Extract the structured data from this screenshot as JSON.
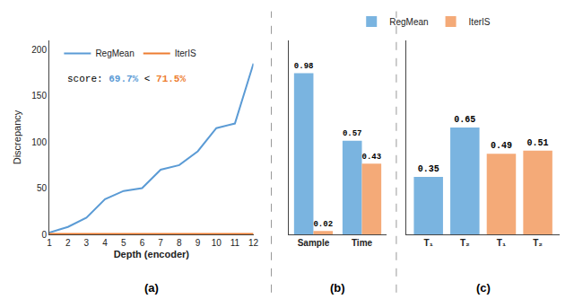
{
  "chart_data": [
    {
      "type": "line",
      "title": "(a)",
      "xlabel": "Depth (encoder)",
      "ylabel": "Discrepancy",
      "x": [
        1,
        2,
        3,
        4,
        5,
        6,
        7,
        8,
        9,
        10,
        11,
        12
      ],
      "series": [
        {
          "name": "RegMean",
          "color": "#5b9bd5",
          "values": [
            2,
            8,
            18,
            38,
            47,
            50,
            70,
            75,
            90,
            115,
            120,
            185
          ]
        },
        {
          "name": "IterIS",
          "color": "#ed7d31",
          "values": [
            0.5,
            0.5,
            0.5,
            0.5,
            0.5,
            0.5,
            0.5,
            0.5,
            0.5,
            0.5,
            0.5,
            0.5
          ]
        }
      ],
      "xlim": [
        1,
        12
      ],
      "xticks": [
        1,
        2,
        3,
        4,
        5,
        6,
        7,
        8,
        9,
        10,
        11,
        12
      ],
      "ylim": [
        0,
        210
      ],
      "yticks": [
        0,
        50,
        100,
        150,
        200
      ],
      "grid": false,
      "legend": "upper left",
      "annotations": [
        {
          "text": "score: "
        },
        {
          "text": "69.7%",
          "color": "#5b9bd5"
        },
        {
          "text": " < "
        },
        {
          "text": "71.5%",
          "color": "#ed7d31"
        }
      ]
    },
    {
      "type": "bar",
      "title": "(b)",
      "categories": [
        "Sample",
        "Time"
      ],
      "series": [
        {
          "name": "RegMean",
          "color": "#7ab4e0",
          "values": [
            0.98,
            0.57
          ]
        },
        {
          "name": "IterIS",
          "color": "#f4aa78",
          "values": [
            0.02,
            0.43
          ]
        }
      ],
      "ylim": [
        0,
        1.18
      ],
      "grid": false,
      "legend": "top",
      "data_labels": true,
      "tick_labels": "x"
    },
    {
      "type": "bar",
      "title": "(c)",
      "categories": [
        "T₁",
        "T₂",
        "T₁",
        "T₂"
      ],
      "values": [
        0.35,
        0.65,
        0.49,
        0.51
      ],
      "colors": [
        "#7ab4e0",
        "#7ab4e0",
        "#f4aa78",
        "#f4aa78"
      ],
      "ylim": [
        0,
        1.18
      ],
      "grid": false,
      "data_labels": true,
      "tick_labels": "x"
    }
  ]
}
